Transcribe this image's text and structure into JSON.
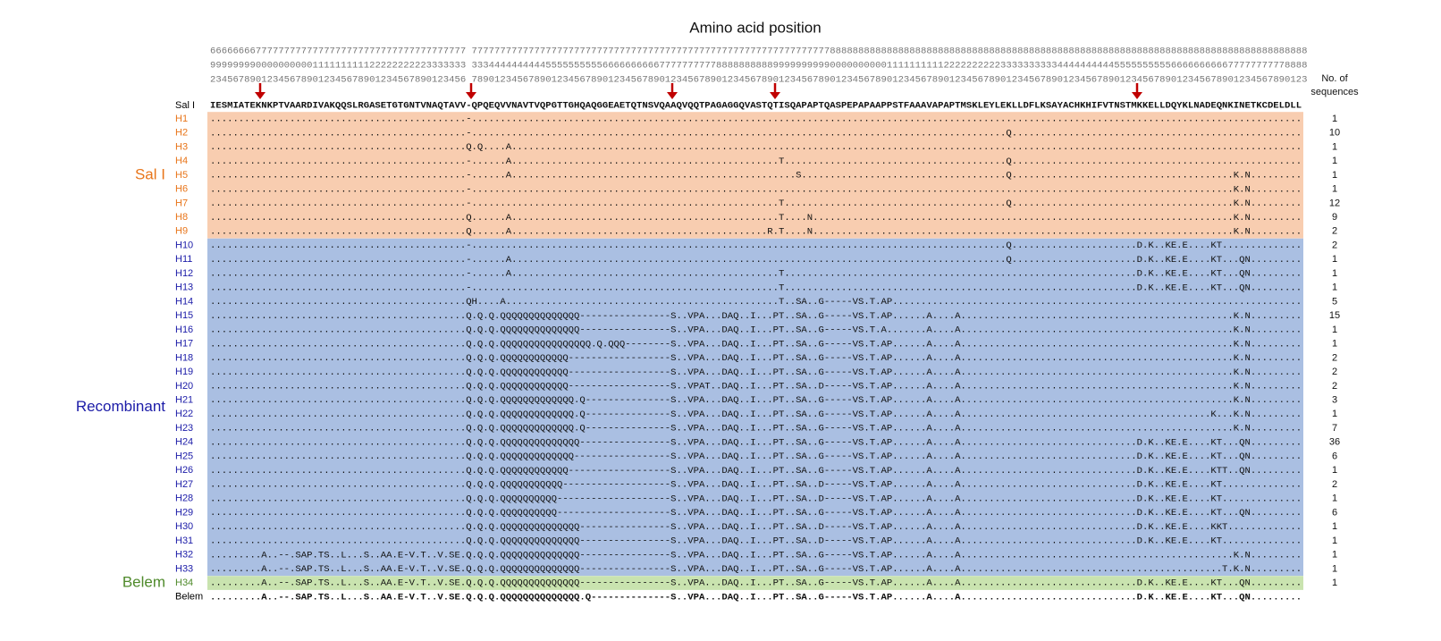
{
  "title": "Amino acid position",
  "ruler": [
    "666666667777777777777777777777777777777777777 777777777777777777777777777777777777777777777777777777777777777888888888888888888888888888888888888888888888888888888888888888888888888888888888888",
    "999999990000000000111111111122222222223333333 333444444444455555555556666666666777777777788888888889999999999000000000011111111112222222222333333333344444444445555555555666666666677777777778888",
    "234567890123456789012345678901234567890123456 789012345678901234567890123456789012345678901234567890123456789012345678901234567890123456789012345678901234567890123456789012345678901234567890123"
  ],
  "count_header": [
    "No. of",
    "sequences"
  ],
  "reference": {
    "label": "Sal I",
    "sequence": "IESMIATEKNKPTVAARDIVAKQQSLRGASETGTGNTVNAQTAVV-QPQEQVVNAVTVQPGTTGHQAQGGEAETQTNSVQAAQVQQTPAGAGGQVASTQTISQAPAPTQASPEPAPAAPPSTFAAAVAPAPTMSKLEYLEKLLDFLKSAYACHKHIFVTNSTMKKELLDQYKLNADEQNKINETKCDELDLL"
  },
  "groups": [
    {
      "name": "Sal I",
      "rows": [
        {
          "label": "H1",
          "count": 1,
          "sequence": ".............................................-.................................................................................................................................................."
        },
        {
          "label": "H2",
          "count": 10,
          "sequence": ".............................................-..............................................................................................Q..................................................."
        },
        {
          "label": "H3",
          "count": 1,
          "sequence": ".............................................Q.Q....A..........................................................................................................................................."
        },
        {
          "label": "H4",
          "count": 1,
          "sequence": ".............................................-......A...............................................T.......................................Q..................................................."
        },
        {
          "label": "H5",
          "count": 1,
          "sequence": ".............................................-......A..................................................S....................................Q.......................................K.N........."
        },
        {
          "label": "H6",
          "count": 1,
          "sequence": ".............................................-......................................................................................................................................K.N........."
        },
        {
          "label": "H7",
          "count": 12,
          "sequence": ".............................................-......................................................T.......................................Q.......................................K.N........."
        },
        {
          "label": "H8",
          "count": 9,
          "sequence": ".............................................Q......A...............................................T....N..........................................................................K.N........."
        },
        {
          "label": "H9",
          "count": 2,
          "sequence": ".............................................Q......A.............................................R.T....N..........................................................................K.N........."
        }
      ]
    },
    {
      "name": "Recombinant",
      "rows": [
        {
          "label": "H10",
          "count": 2,
          "sequence": ".............................................-..............................................................................................Q......................D.K..KE.E....KT.............."
        },
        {
          "label": "H11",
          "count": 1,
          "sequence": ".............................................-......A.......................................................................................Q......................D.K..KE.E....KT...QN........."
        },
        {
          "label": "H12",
          "count": 1,
          "sequence": ".............................................-......A...............................................T..............................................................D.K..KE.E....KT...QN........."
        },
        {
          "label": "H13",
          "count": 1,
          "sequence": ".............................................-......................................................T..............................................................D.K..KE.E....KT...QN........."
        },
        {
          "label": "H14",
          "count": 5,
          "sequence": ".............................................QH....A................................................T..SA..G-----VS.T.AP........................................................................"
        },
        {
          "label": "H15",
          "count": 15,
          "sequence": ".............................................Q.Q.Q.QQQQQQQQQQQQQQ----------------S..VPA...DAQ..I...PT..SA..G-----VS.T.AP......A....A................................................K.N........."
        },
        {
          "label": "H16",
          "count": 1,
          "sequence": ".............................................Q.Q.Q.QQQQQQQQQQQQQQ----------------S..VPA...DAQ..I...PT..SA..G-----VS.T.A.......A....A................................................K.N........."
        },
        {
          "label": "H17",
          "count": 1,
          "sequence": ".............................................Q.Q.Q.QQQQQQQQQQQQQQQQ.Q.QQQ--------S..VPA...DAQ..I...PT..SA..G-----VS.T.AP......A....A................................................K.N........."
        },
        {
          "label": "H18",
          "count": 2,
          "sequence": ".............................................Q.Q.Q.QQQQQQQQQQQQ------------------S..VPA...DAQ..I...PT..SA..G-----VS.T.AP......A....A................................................K.N........."
        },
        {
          "label": "H19",
          "count": 2,
          "sequence": ".............................................Q.Q.Q.QQQQQQQQQQQQ------------------S..VPA...DAQ..I...PT..SA..G-----VS.T.AP......A....A................................................K.N........."
        },
        {
          "label": "H20",
          "count": 2,
          "sequence": ".............................................Q.Q.Q.QQQQQQQQQQQQ------------------S..VPAT..DAQ..I...PT..SA..D-----VS.T.AP......A....A................................................K.N........."
        },
        {
          "label": "H21",
          "count": 3,
          "sequence": ".............................................Q.Q.Q.QQQQQQQQQQQQQ.Q---------------S..VPA...DAQ..I...PT..SA..G-----VS.T.AP......A....A................................................K.N........."
        },
        {
          "label": "H22",
          "count": 1,
          "sequence": ".............................................Q.Q.Q.QQQQQQQQQQQQQ.Q---------------S..VPA...DAQ..I...PT..SA..G-----VS.T.AP......A....A............................................K...K.N........."
        },
        {
          "label": "H23",
          "count": 7,
          "sequence": ".............................................Q.Q.Q.QQQQQQQQQQQQQ.Q---------------S..VPA...DAQ..I...PT..SA..G-----VS.T.AP......A....A................................................K.N........."
        },
        {
          "label": "H24",
          "count": 36,
          "sequence": ".............................................Q.Q.Q.QQQQQQQQQQQQQQ----------------S..VPA...DAQ..I...PT..SA..G-----VS.T.AP......A....A...............................D.K..KE.E....KT...QN........."
        },
        {
          "label": "H25",
          "count": 6,
          "sequence": ".............................................Q.Q.Q.QQQQQQQQQQQQQ-----------------S..VPA...DAQ..I...PT..SA..G-----VS.T.AP......A....A...............................D.K..KE.E....KT...QN........."
        },
        {
          "label": "H26",
          "count": 1,
          "sequence": ".............................................Q.Q.Q.QQQQQQQQQQQQ------------------S..VPA...DAQ..I...PT..SA..G-----VS.T.AP......A....A...............................D.K..KE.E....KTT..QN........."
        },
        {
          "label": "H27",
          "count": 2,
          "sequence": ".............................................Q.Q.Q.QQQQQQQQQQQ-------------------S..VPA...DAQ..I...PT..SA..D-----VS.T.AP......A....A...............................D.K..KE.E....KT.............."
        },
        {
          "label": "H28",
          "count": 1,
          "sequence": ".............................................Q.Q.Q.QQQQQQQQQQ--------------------S..VPA...DAQ..I...PT..SA..D-----VS.T.AP......A....A...............................D.K..KE.E....KT.............."
        },
        {
          "label": "H29",
          "count": 6,
          "sequence": ".............................................Q.Q.Q.QQQQQQQQQQ--------------------S..VPA...DAQ..I...PT..SA..G-----VS.T.AP......A....A...............................D.K..KE.E....KT...QN........."
        },
        {
          "label": "H30",
          "count": 1,
          "sequence": ".............................................Q.Q.Q.QQQQQQQQQQQQQQ----------------S..VPA...DAQ..I...PT..SA..D-----VS.T.AP......A....A...............................D.K..KE.E....KKT............."
        },
        {
          "label": "H31",
          "count": 1,
          "sequence": ".............................................Q.Q.Q.QQQQQQQQQQQQQQ----------------S..VPA...DAQ..I...PT..SA..D-----VS.T.AP......A....A...............................D.K..KE.E....KT.............."
        },
        {
          "label": "H32",
          "count": 1,
          "sequence": ".........A..--.SAP.TS..L...S..AA.E-V.T..V.SE.Q.Q.Q.QQQQQQQQQQQQQQ----------------S..VPA...DAQ..I...PT..SA..G-----VS.T.AP......A....A................................................K.N........."
        },
        {
          "label": "H33",
          "count": 1,
          "sequence": ".........A..--.SAP.TS..L...S..AA.E-V.T..V.SE.Q.Q.Q.QQQQQQQQQQQQQQ----------------S..VPA...DAQ..I...PT..SA..G-----VS.T.AP......A....A..............................................T.K.N........."
        }
      ]
    },
    {
      "name": "Belem",
      "rows": [
        {
          "label": "H34",
          "count": 1,
          "sequence": ".........A..--.SAP.TS..L...S..AA.E-V.T..V.SE.Q.Q.Q.QQQQQQQQQQQQQQ----------------S..VPA...DAQ..I...PT..SA..G-----VS.T.AP......A....A...............................D.K..KE.E....KT...QN........."
        }
      ]
    }
  ],
  "consensus": {
    "label": "Belem",
    "sequence": ".........A..--.SAP.TS..L...S..AA.E-V.T..V.SE.Q.Q.Q.QQQQQQQQQQQQQQ.Q--------------S..VPA...DAQ..I...PT..SA..G-----VS.T.AP......A....A...............................D.K..KE.E....KT...QN........."
  }
}
